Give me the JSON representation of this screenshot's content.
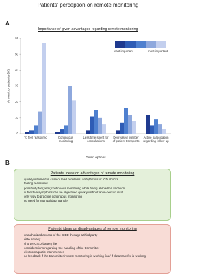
{
  "title": "Patients' perception on remote monitoring",
  "panel_labels": [
    "A",
    "B"
  ],
  "chart_data": {
    "type": "bar",
    "title": "Importance of given advantages regarding remote monitoring",
    "x_label": "Given options",
    "y_label": "Amount of patients (%)",
    "categories": [
      "To feel reassured",
      "Continuous monitoring",
      "Less time spent for consultations",
      "Decreased number of patient transports",
      "Active participation regarding follow-up"
    ],
    "series": [
      {
        "color": "#1f3a8f",
        "values": [
          1,
          1,
          2,
          2,
          12
        ]
      },
      {
        "color": "#2f5cb5",
        "values": [
          2,
          3,
          11,
          7,
          5
        ]
      },
      {
        "color": "#4f80cf",
        "values": [
          5,
          5,
          15,
          16,
          9
        ]
      },
      {
        "color": "#8ea8dd",
        "values": [
          14,
          30,
          10,
          12,
          6
        ]
      },
      {
        "color": "#c3cfee",
        "values": [
          57,
          21,
          6,
          8,
          3
        ]
      }
    ],
    "legend_labels": {
      "low": "least important",
      "high": "most important"
    },
    "ylim": [
      0,
      60
    ],
    "yticks": [
      0,
      10,
      20,
      30,
      40,
      50,
      60
    ],
    "grid": false
  },
  "advantages": {
    "title": "Patients' ideas on advantages of remote monitoring",
    "items": [
      "quickly informed in case of lead problems, arrhythmias or ICD shocks",
      "feeling reassured",
      "possibility for (semi)continuous monitoring while being abroad/on vacation",
      "subjective symptoms can be objectified quickly without an in-person visit",
      "only way to practice continuous monitoring",
      "no need for manual data transfer"
    ]
  },
  "disadvantages": {
    "title": "Patients' ideas on disadvantages of remote monitoring",
    "items": [
      "unauthorized access of the CIED through a third party",
      "data privacy",
      "shorter CIED-battery life",
      "considerations regarding the handling of the transmitter",
      "electromagnetic interferences",
      "no feedback if the transmitter/remote monitoring is working fine/ if data transfer is working"
    ]
  }
}
